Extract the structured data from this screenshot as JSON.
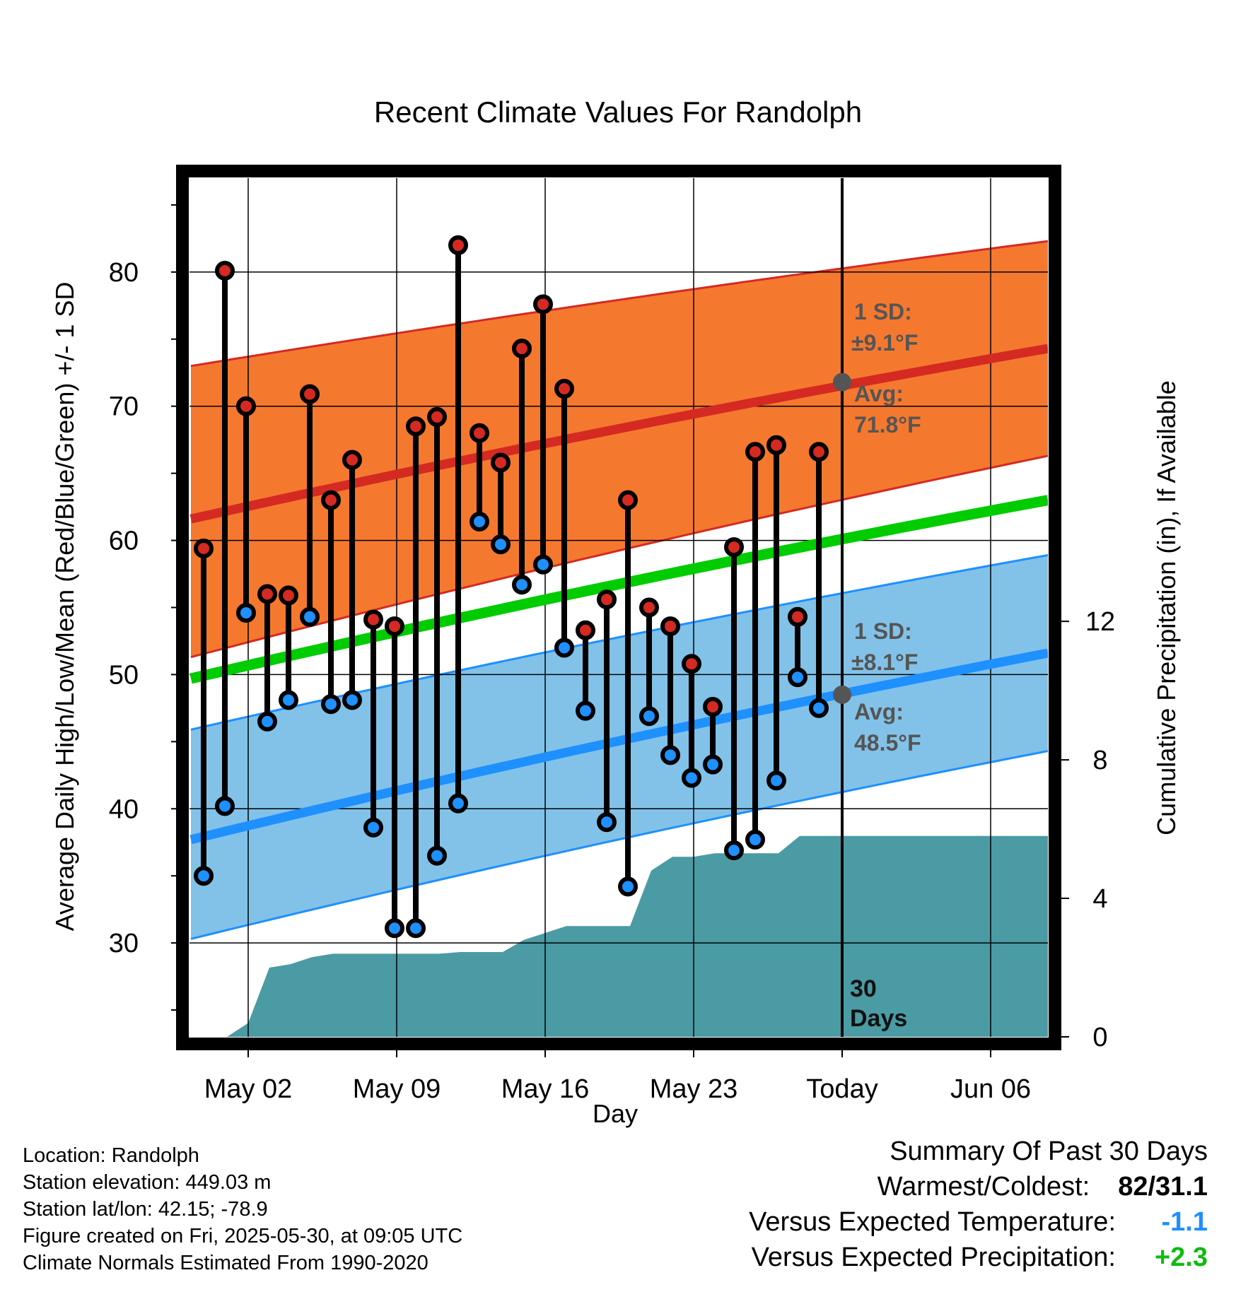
{
  "chart_data": {
    "type": "climate-summary",
    "title": "Recent Climate Values For Randolph",
    "xlabel": "Day",
    "ylabel_left": "Average Daily High/Low/Mean (Red/Blue/Green) +/- 1 SD",
    "ylabel_right": "Cumulative Precipitation (in), If Available",
    "xlim_day_index": [
      -0.8,
      39.8
    ],
    "ylim_left": [
      23,
      87
    ],
    "ylim_right": [
      0,
      24.8
    ],
    "left_ticks": [
      "30",
      "40",
      "50",
      "60",
      "70",
      "80"
    ],
    "right_ticks": [
      "0",
      "4",
      "8",
      "12"
    ],
    "x_tick_labels": [
      {
        "day": 2,
        "label": "May 02"
      },
      {
        "day": 9,
        "label": "May 09"
      },
      {
        "day": 16,
        "label": "May 16"
      },
      {
        "day": 23,
        "label": "May 23"
      },
      {
        "day": 30,
        "label": "Today"
      },
      {
        "day": 37,
        "label": "Jun 06"
      }
    ],
    "days": [
      0,
      1,
      2,
      3,
      4,
      5,
      6,
      7,
      8,
      9,
      10,
      11,
      12,
      13,
      14,
      15,
      16,
      17,
      18,
      19,
      20,
      21,
      22,
      23,
      24,
      25,
      26,
      27,
      28,
      29
    ],
    "highs": [
      59.4,
      80.1,
      70.0,
      56.0,
      55.9,
      70.9,
      63.0,
      66.0,
      54.1,
      53.6,
      68.5,
      69.2,
      82.0,
      68.0,
      65.8,
      74.3,
      77.6,
      71.3,
      53.3,
      55.6,
      63.0,
      55.0,
      53.6,
      50.8,
      47.6,
      59.5,
      66.6,
      67.1,
      54.3,
      66.6
    ],
    "lows": [
      35.0,
      40.2,
      54.6,
      46.5,
      48.1,
      54.3,
      47.8,
      48.1,
      38.6,
      31.1,
      31.1,
      36.5,
      40.4,
      61.4,
      59.7,
      56.7,
      58.2,
      52.0,
      47.3,
      39.0,
      34.2,
      46.9,
      44.0,
      42.3,
      43.3,
      36.9,
      37.7,
      42.1,
      49.8,
      47.5
    ],
    "normals": {
      "x": [
        -0.7,
        39.7
      ],
      "avg_high": [
        61.6,
        74.3
      ],
      "avg_high_upper": [
        73.0,
        82.3
      ],
      "avg_high_lower": [
        51.3,
        66.3
      ],
      "avg_low": [
        37.7,
        51.6
      ],
      "avg_low_upper": [
        45.9,
        58.9
      ],
      "avg_low_lower": [
        30.3,
        44.3
      ],
      "avg_mean": [
        49.7,
        63.0
      ]
    },
    "precip_cumulative": {
      "x": [
        -0.7,
        1,
        2,
        3,
        4,
        5,
        6,
        7,
        8,
        9,
        10,
        11,
        12,
        13,
        14,
        15,
        16,
        17,
        18,
        19,
        20,
        21,
        22,
        23,
        24,
        25,
        26,
        27,
        28,
        29,
        30,
        39.7
      ],
      "y": [
        0,
        0,
        0.4,
        2.0,
        2.1,
        2.3,
        2.4,
        2.4,
        2.4,
        2.4,
        2.4,
        2.4,
        2.45,
        2.45,
        2.45,
        2.8,
        3.0,
        3.2,
        3.2,
        3.2,
        3.2,
        4.8,
        5.2,
        5.2,
        5.3,
        5.3,
        5.3,
        5.3,
        5.8,
        5.8,
        5.8,
        5.8
      ]
    },
    "today_day": 30,
    "today_avg_high": 71.8,
    "today_avg_low": 48.5,
    "annotations": {
      "high_sd_1": "1 SD:",
      "high_sd_2": "±9.1°F",
      "high_avg_1": "Avg:",
      "high_avg_2": "71.8°F",
      "low_sd_1": "1 SD:",
      "low_sd_2": "±8.1°F",
      "low_avg_1": "Avg:",
      "low_avg_2": "48.5°F",
      "days_1": "30",
      "days_2": "Days"
    },
    "colors": {
      "high_band": "#f5782f",
      "high_line": "#d42a22",
      "low_band": "#82c2e8",
      "low_line": "#1e90ff",
      "mean_line": "#00cc00",
      "precip": "#4a9ba4",
      "high_marker": "#d42a22",
      "low_marker": "#1e90ff",
      "today_marker": "#555555"
    },
    "grid": true
  },
  "info": {
    "location": "Location: Randolph",
    "elevation": "Station elevation: 449.03 m",
    "latlon": "Station lat/lon: 42.15; -78.9",
    "created": "Figure created on Fri, 2025-05-30, at 09:05 UTC",
    "normals": "Climate Normals Estimated From 1990-2020"
  },
  "summary": {
    "heading": "Summary Of Past 30 Days",
    "warmest_label": "Warmest/Coldest:",
    "warmest_value": "82/31.1",
    "temp_label": "Versus Expected Temperature:",
    "temp_value": "-1.1",
    "temp_color": "#1e90ff",
    "precip_label": "Versus Expected Precipitation:",
    "precip_value": "+2.3",
    "precip_color": "#11bb11"
  }
}
